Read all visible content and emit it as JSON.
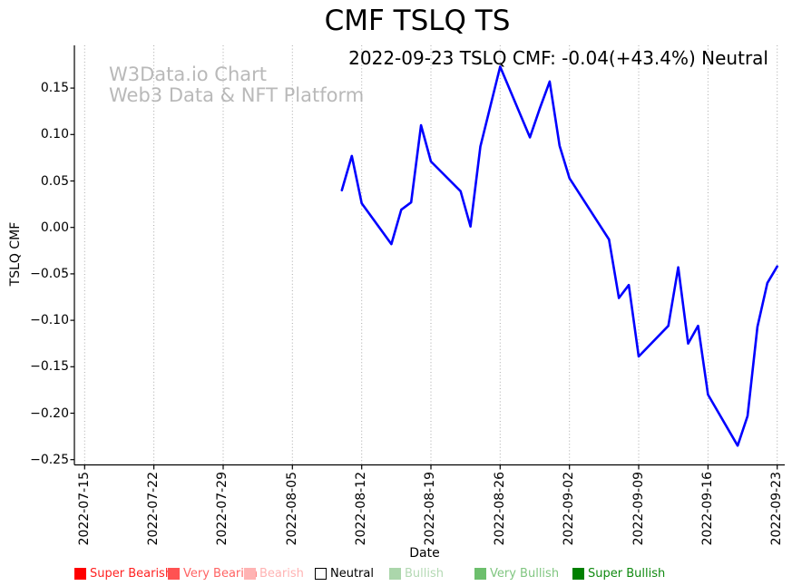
{
  "title": "CMF TSLQ TS",
  "annotation": "2022-09-23 TSLQ CMF: -0.04(+43.4%) Neutral",
  "watermark": {
    "line1": "W3Data.io Chart",
    "line2": "Web3 Data & NFT Platform"
  },
  "chart_data": {
    "type": "line",
    "title": "CMF TSLQ TS",
    "xlabel": "Date",
    "ylabel": "TSLQ CMF",
    "line_color": "#0000ff",
    "grid": {
      "vertical": true,
      "style": "dotted",
      "color": "#a8a8a8"
    },
    "legend_position": "bottom",
    "ylim": [
      -0.256,
      0.196
    ],
    "y_ticks": [
      {
        "label": "0.15",
        "value": 0.15
      },
      {
        "label": "0.10",
        "value": 0.1
      },
      {
        "label": "0.05",
        "value": 0.05
      },
      {
        "label": "0.00",
        "value": 0.0
      },
      {
        "label": "−0.05",
        "value": -0.05
      },
      {
        "label": "−0.10",
        "value": -0.1
      },
      {
        "label": "−0.15",
        "value": -0.15
      },
      {
        "label": "−0.20",
        "value": -0.2
      },
      {
        "label": "−0.25",
        "value": -0.25
      }
    ],
    "x_tick_labels": [
      "2022-07-15",
      "2022-07-22",
      "2022-07-29",
      "2022-08-05",
      "2022-08-12",
      "2022-08-19",
      "2022-08-26",
      "2022-09-02",
      "2022-09-09",
      "2022-09-16",
      "2022-09-23"
    ],
    "series": [
      {
        "name": "TSLQ CMF",
        "points": [
          {
            "date": "2022-08-10",
            "value": 0.04
          },
          {
            "date": "2022-08-11",
            "value": 0.077
          },
          {
            "date": "2022-08-12",
            "value": 0.026
          },
          {
            "date": "2022-08-15",
            "value": -0.018
          },
          {
            "date": "2022-08-16",
            "value": 0.019
          },
          {
            "date": "2022-08-17",
            "value": 0.027
          },
          {
            "date": "2022-08-18",
            "value": 0.11
          },
          {
            "date": "2022-08-19",
            "value": 0.071
          },
          {
            "date": "2022-08-22",
            "value": 0.039
          },
          {
            "date": "2022-08-23",
            "value": 0.001
          },
          {
            "date": "2022-08-24",
            "value": 0.087
          },
          {
            "date": "2022-08-25",
            "value": 0.13
          },
          {
            "date": "2022-08-26",
            "value": 0.173
          },
          {
            "date": "2022-08-29",
            "value": 0.097
          },
          {
            "date": "2022-08-30",
            "value": 0.128
          },
          {
            "date": "2022-08-31",
            "value": 0.157
          },
          {
            "date": "2022-09-01",
            "value": 0.088
          },
          {
            "date": "2022-09-02",
            "value": 0.053
          },
          {
            "date": "2022-09-06",
            "value": -0.013
          },
          {
            "date": "2022-09-07",
            "value": -0.076
          },
          {
            "date": "2022-09-08",
            "value": -0.062
          },
          {
            "date": "2022-09-09",
            "value": -0.139
          },
          {
            "date": "2022-09-12",
            "value": -0.106
          },
          {
            "date": "2022-09-13",
            "value": -0.043
          },
          {
            "date": "2022-09-14",
            "value": -0.125
          },
          {
            "date": "2022-09-15",
            "value": -0.106
          },
          {
            "date": "2022-09-16",
            "value": -0.18
          },
          {
            "date": "2022-09-19",
            "value": -0.235
          },
          {
            "date": "2022-09-20",
            "value": -0.203
          },
          {
            "date": "2022-09-21",
            "value": -0.107
          },
          {
            "date": "2022-09-22",
            "value": -0.06
          },
          {
            "date": "2022-09-23",
            "value": -0.042
          }
        ]
      }
    ]
  },
  "legend": {
    "items": [
      {
        "label": "Super Bearish",
        "swatch_color": "#ff0000",
        "edge_color": "#ff0000",
        "text_color": "#ff2222"
      },
      {
        "label": "Very Bearish",
        "swatch_color": "#ff5252",
        "edge_color": "#ff5252",
        "text_color": "#ff6464"
      },
      {
        "label": "Bearish",
        "swatch_color": "#ffb3b3",
        "edge_color": "#ffb3b3",
        "text_color": "#ffb3b3"
      },
      {
        "label": "Neutral",
        "swatch_color": "#ffffff",
        "edge_color": "#000000",
        "text_color": "#000000"
      },
      {
        "label": "Bullish",
        "swatch_color": "#abd6ab",
        "edge_color": "#abd6ab",
        "text_color": "#b4d9b4"
      },
      {
        "label": "Very Bullish",
        "swatch_color": "#6dbf6d",
        "edge_color": "#6dbf6d",
        "text_color": "#81c681"
      },
      {
        "label": "Super Bullish",
        "swatch_color": "#008000",
        "edge_color": "#008000",
        "text_color": "#108a10"
      }
    ]
  }
}
